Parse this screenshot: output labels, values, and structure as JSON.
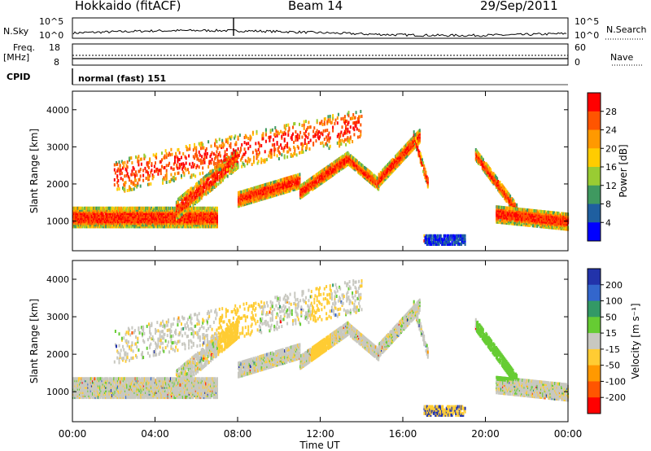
{
  "header": {
    "title": "Hokkaido (fitACF)",
    "beam": "Beam 14",
    "date": "29/Sep/2011"
  },
  "top_panels": {
    "nsky_label": "N.Sky",
    "nsearch_label": "N.Search",
    "nsky_ticks": [
      "10^5",
      "10^0"
    ],
    "nsearch_ticks": [
      "10^5",
      "10^0"
    ],
    "freq_label": "Freq.",
    "freq_unit": "[MHz]",
    "freq_ticks": [
      "18",
      "8"
    ],
    "nave_label": "Nave",
    "nave_ticks": [
      "60",
      "0"
    ],
    "cpid_label": "CPID",
    "cpid_value": "normal (fast) 151"
  },
  "chart_data": [
    {
      "type": "heatmap",
      "ylabel": "Slant Range [km]",
      "colorbar_label": "Power [dB]",
      "colorbar_ticks": [
        "28",
        "24",
        "20",
        "16",
        "12",
        "8",
        "4"
      ],
      "colorbar_colors": [
        "#ff0000",
        "#ff5500",
        "#ff9900",
        "#ffcc00",
        "#99cc33",
        "#3f9960",
        "#1f5fa0",
        "#0000ff"
      ],
      "ylim": [
        200,
        4500
      ],
      "yticks": [
        1000,
        2000,
        3000,
        4000
      ],
      "xlim": [
        "00:00",
        "24:00"
      ],
      "grid": false
    },
    {
      "type": "heatmap",
      "ylabel": "Slant Range [km]",
      "colorbar_label": "Velocity [m s⁻¹]",
      "colorbar_ticks": [
        "200",
        "100",
        "50",
        "15",
        "-15",
        "-50",
        "-100",
        "-200"
      ],
      "colorbar_colors": [
        "#2233aa",
        "#3366cc",
        "#339966",
        "#66cc33",
        "#c8c8c0",
        "#ffcc33",
        "#ff9900",
        "#ff5500",
        "#ff0000"
      ],
      "ylim": [
        200,
        4500
      ],
      "yticks": [
        1000,
        2000,
        3000,
        4000
      ],
      "xlim": [
        "00:00",
        "24:00"
      ],
      "grid": false
    }
  ],
  "x_axis": {
    "label": "Time UT",
    "ticks": [
      "00:00",
      "04:00",
      "08:00",
      "12:00",
      "16:00",
      "20:00",
      "00:00"
    ],
    "tick_hours": [
      0,
      4,
      8,
      12,
      16,
      20,
      24
    ]
  }
}
